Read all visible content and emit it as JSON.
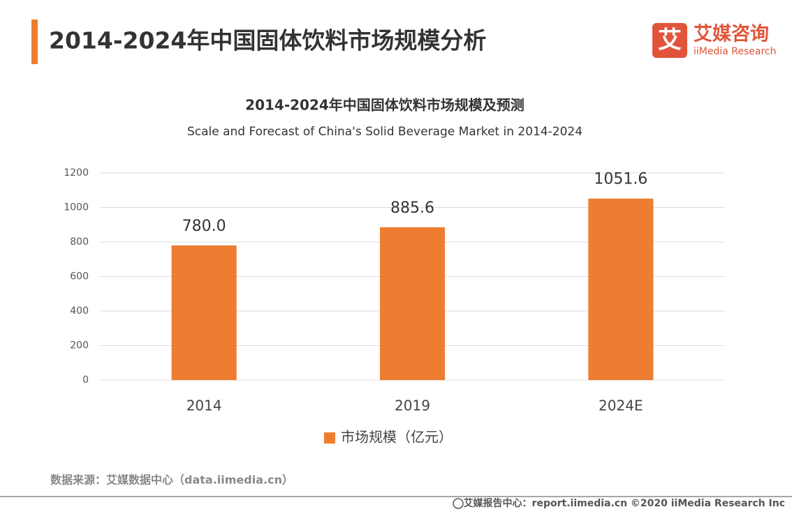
{
  "header": {
    "title": "2014-2024年中国固体饮料市场规模分析",
    "logo_icon": "艾",
    "logo_name": "艾媒咨询",
    "logo_sub": "iiMedia Research"
  },
  "chart_data": {
    "type": "bar",
    "title": "2014-2024年中国固体饮料市场规模及预测",
    "subtitle": "Scale and Forecast of China's Solid Beverage Market in 2014-2024",
    "categories": [
      "2014",
      "2019",
      "2024E"
    ],
    "series": [
      {
        "name": "市场规模（亿元）",
        "color": "#ed7d31",
        "values": [
          780.0,
          885.6,
          1051.6
        ],
        "value_labels": [
          "780.0",
          "885.6",
          "1051.6"
        ]
      }
    ],
    "ylim": [
      0,
      1200
    ],
    "yticks": [
      0,
      200,
      400,
      600,
      800,
      1000,
      1200
    ],
    "grid": true
  },
  "footer": {
    "source": "数据来源：艾媒数据中心（data.iimedia.cn）",
    "credit": "艾媒报告中心：report.iimedia.cn  ©2020  iiMedia Research  Inc"
  }
}
